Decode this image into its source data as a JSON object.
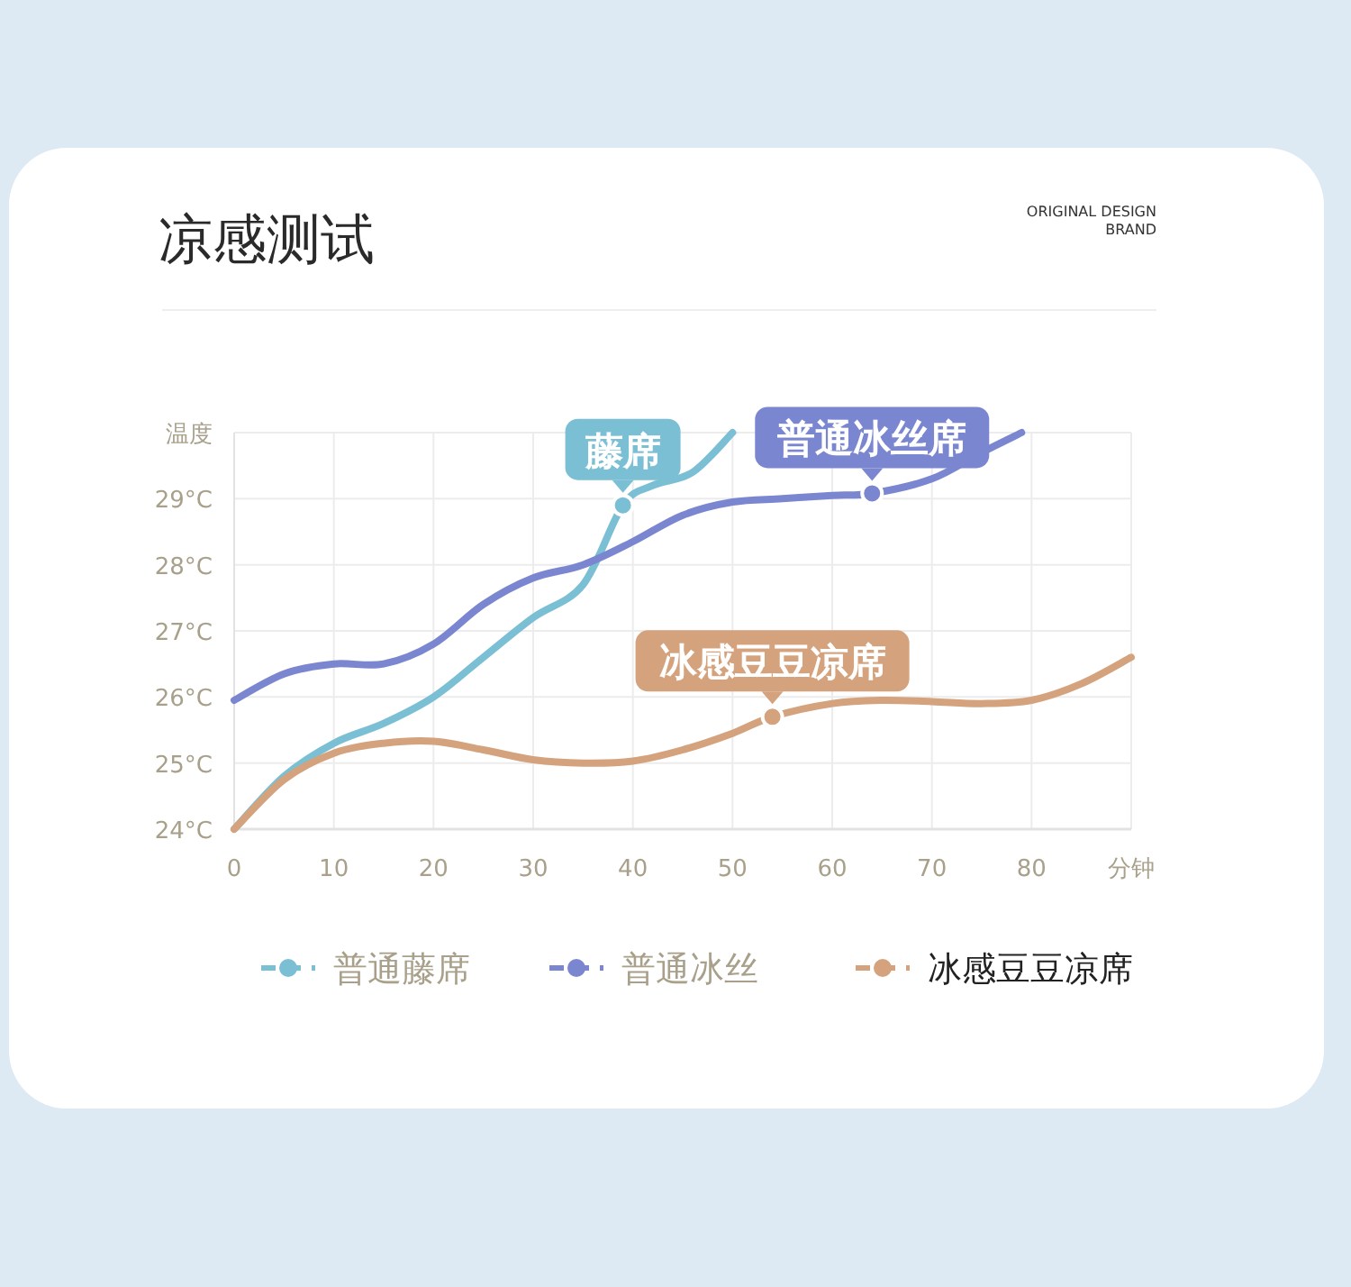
{
  "chart_data": {
    "type": "line",
    "title": "凉感测试",
    "xlim": [
      0,
      90
    ],
    "xticks": [
      0,
      10,
      20,
      30,
      40,
      50,
      60,
      70,
      80,
      {
        "value": 90,
        "label": "分钟"
      }
    ],
    "ylim": [
      24,
      30
    ],
    "yticks": [
      {
        "value": 24,
        "label": "24°C"
      },
      {
        "value": 25,
        "label": "25°C"
      },
      {
        "value": 26,
        "label": "26°C"
      },
      {
        "value": 27,
        "label": "27°C"
      },
      {
        "value": 28,
        "label": "28°C"
      },
      {
        "value": 29,
        "label": "29°C"
      },
      {
        "value": 30,
        "label": "温度"
      }
    ],
    "grid": true,
    "legend": "bottom",
    "marker": "none",
    "line_style": "solid",
    "series": [
      {
        "name": "普通藤席",
        "color": "#7bbfd4",
        "x": [
          0,
          5,
          10,
          15,
          20,
          25,
          30,
          35,
          39,
          42,
          46,
          50
        ],
        "values": [
          24,
          24.8,
          25.3,
          25.6,
          26.0,
          26.6,
          27.2,
          27.7,
          28.9,
          29.2,
          29.4,
          30
        ]
      },
      {
        "name": "普通冰丝",
        "color": "#7b86d0",
        "x": [
          0,
          5,
          10,
          15,
          20,
          25,
          30,
          35,
          40,
          45,
          50,
          55,
          60,
          64,
          70,
          75,
          79
        ],
        "values": [
          25.95,
          26.35,
          26.5,
          26.5,
          26.8,
          27.4,
          27.8,
          28.0,
          28.35,
          28.75,
          28.95,
          29.0,
          29.05,
          29.08,
          29.3,
          29.7,
          30
        ]
      },
      {
        "name": "冰感豆豆凉席",
        "color": "#d4a27c",
        "x": [
          0,
          5,
          10,
          15,
          20,
          25,
          30,
          35,
          40,
          45,
          50,
          54,
          60,
          65,
          70,
          75,
          80,
          85,
          90
        ],
        "values": [
          24,
          24.75,
          25.15,
          25.3,
          25.33,
          25.2,
          25.05,
          25.0,
          25.03,
          25.2,
          25.45,
          25.7,
          25.9,
          25.95,
          25.93,
          25.9,
          25.95,
          26.2,
          26.6
        ]
      }
    ],
    "annotations": [
      {
        "text": "藤席",
        "x": 39,
        "y": 28.9
      },
      {
        "text": "普通冰丝席",
        "x": 64,
        "y": 29.08
      },
      {
        "text": "冰感豆豆凉席",
        "x": 54,
        "y": 25.7
      },
      "ORIGINAL DESIGN BRAND"
    ]
  }
}
